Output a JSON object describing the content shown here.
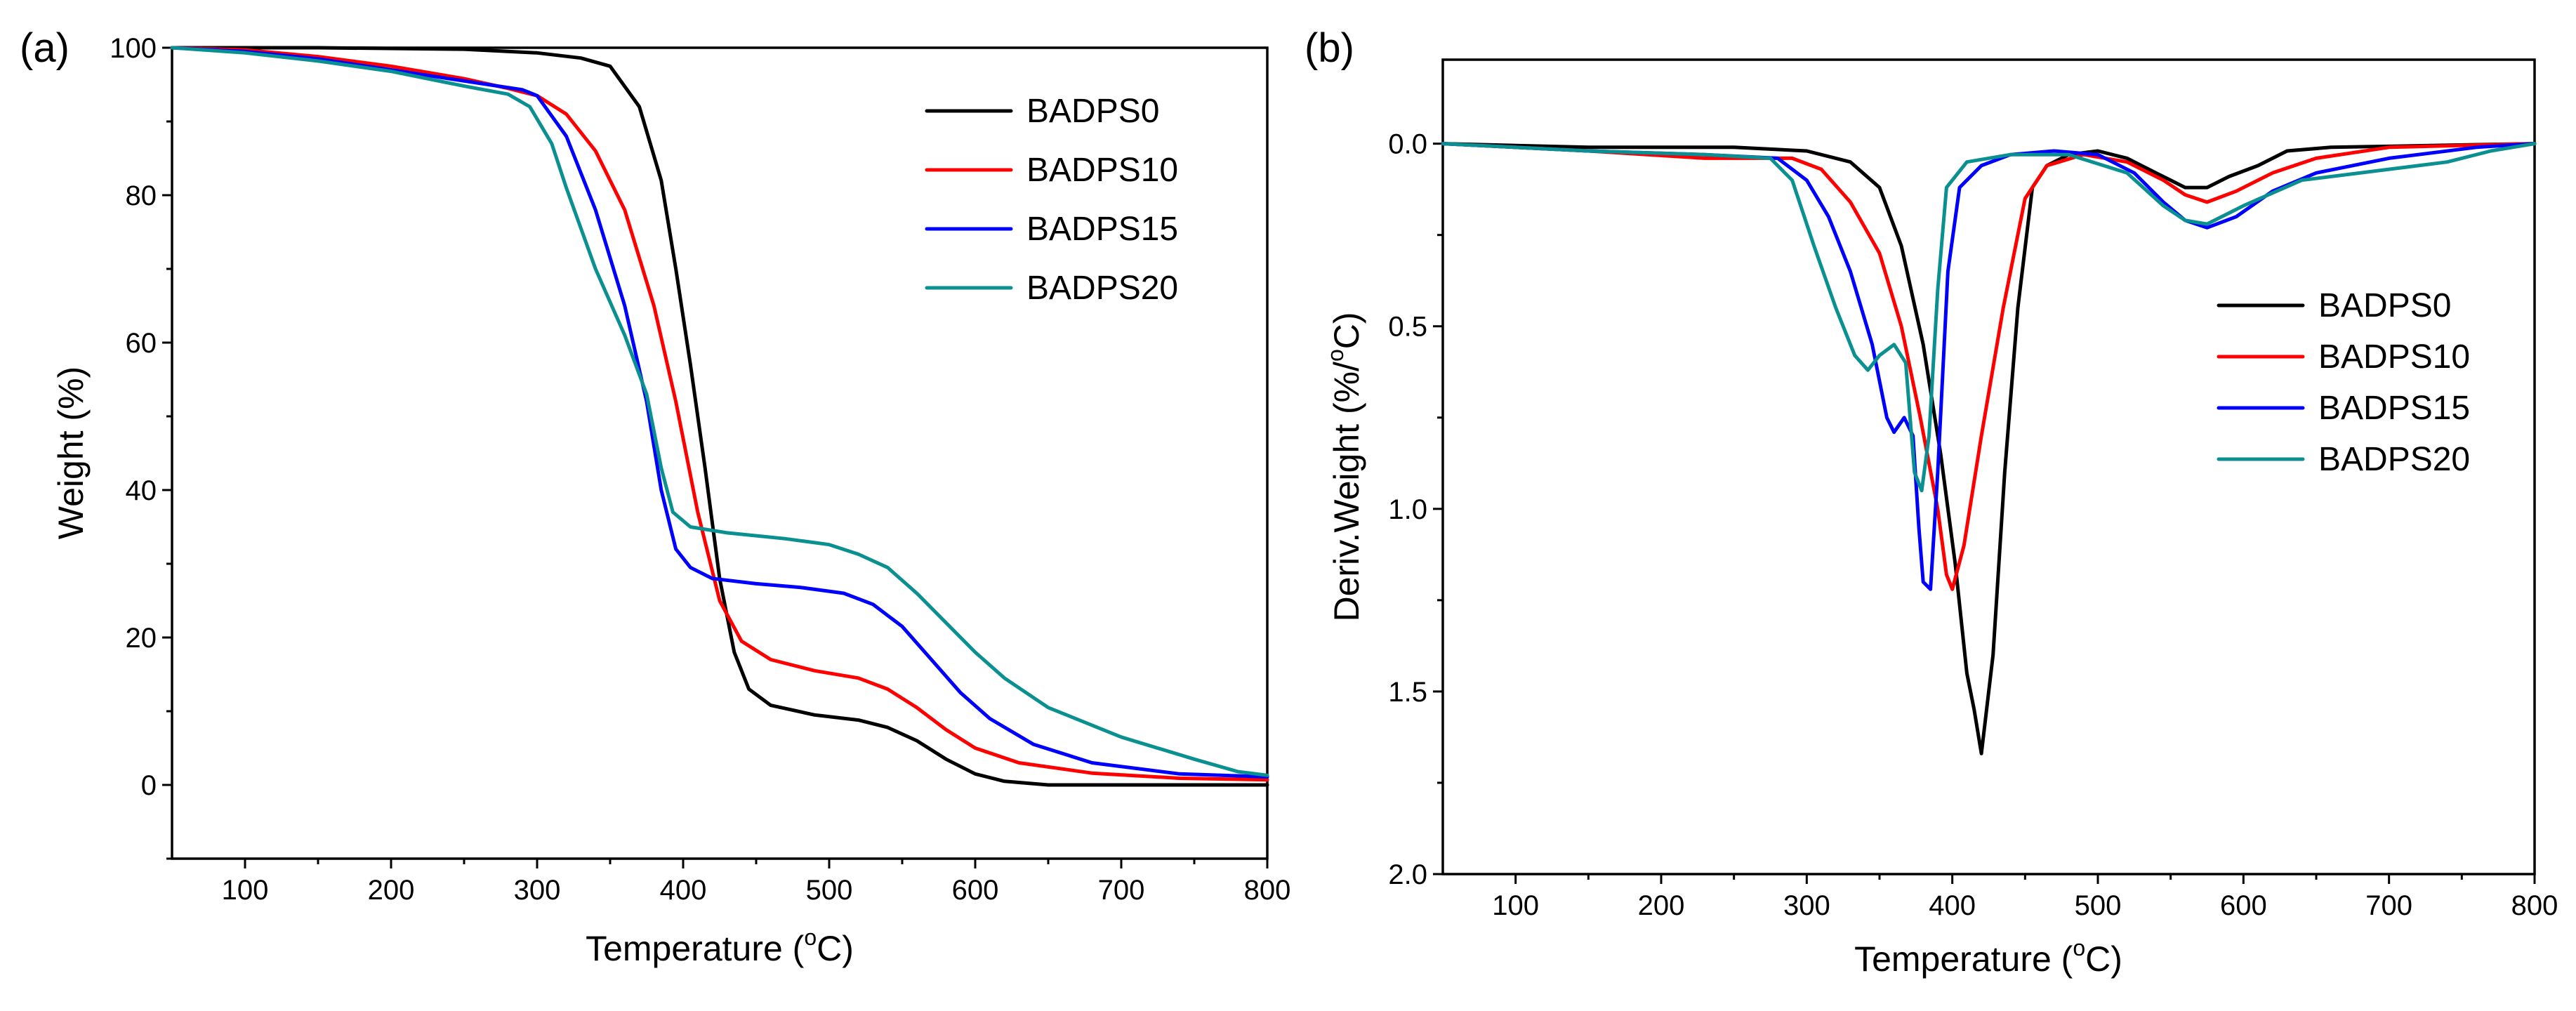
{
  "chart_data": [
    {
      "id": "a",
      "type": "line",
      "panel_label": "(a)",
      "xlabel": "Temperature (",
      "xlabel_sup": "o",
      "xlabel_tail": "C)",
      "ylabel": "Weight (%)",
      "xlim": [
        50,
        800
      ],
      "ylim": [
        -10,
        100
      ],
      "xticks": [
        100,
        200,
        300,
        400,
        500,
        600,
        700,
        800
      ],
      "yticks": [
        0,
        20,
        40,
        60,
        80,
        100
      ],
      "grid": false,
      "legend_position": "top-right",
      "series": [
        {
          "name": "BADPS0",
          "color": "#000000",
          "points": [
            [
              50,
              100
            ],
            [
              150,
              100
            ],
            [
              250,
              99.8
            ],
            [
              300,
              99.3
            ],
            [
              330,
              98.6
            ],
            [
              350,
              97.5
            ],
            [
              370,
              92
            ],
            [
              385,
              82
            ],
            [
              395,
              70
            ],
            [
              405,
              57
            ],
            [
              415,
              43
            ],
            [
              425,
              28
            ],
            [
              435,
              18
            ],
            [
              445,
              13
            ],
            [
              460,
              10.8
            ],
            [
              490,
              9.5
            ],
            [
              520,
              8.8
            ],
            [
              540,
              7.8
            ],
            [
              560,
              6
            ],
            [
              580,
              3.5
            ],
            [
              600,
              1.5
            ],
            [
              620,
              0.5
            ],
            [
              650,
              0
            ],
            [
              800,
              0
            ]
          ]
        },
        {
          "name": "BADPS10",
          "color": "#ff0000",
          "points": [
            [
              50,
              100
            ],
            [
              100,
              99.7
            ],
            [
              150,
              98.8
            ],
            [
              200,
              97.5
            ],
            [
              250,
              95.8
            ],
            [
              280,
              94.5
            ],
            [
              300,
              93.5
            ],
            [
              320,
              91
            ],
            [
              340,
              86
            ],
            [
              360,
              78
            ],
            [
              380,
              65
            ],
            [
              395,
              52
            ],
            [
              410,
              37
            ],
            [
              425,
              25
            ],
            [
              440,
              19.5
            ],
            [
              460,
              17
            ],
            [
              490,
              15.5
            ],
            [
              520,
              14.5
            ],
            [
              540,
              13
            ],
            [
              560,
              10.5
            ],
            [
              580,
              7.5
            ],
            [
              600,
              5
            ],
            [
              630,
              3
            ],
            [
              680,
              1.6
            ],
            [
              740,
              0.9
            ],
            [
              800,
              0.7
            ]
          ]
        },
        {
          "name": "BADPS15",
          "color": "#0000ff",
          "points": [
            [
              50,
              100
            ],
            [
              100,
              99.5
            ],
            [
              150,
              98.5
            ],
            [
              200,
              97
            ],
            [
              250,
              95.5
            ],
            [
              290,
              94.3
            ],
            [
              300,
              93.5
            ],
            [
              320,
              88
            ],
            [
              340,
              78
            ],
            [
              360,
              65
            ],
            [
              375,
              52
            ],
            [
              385,
              40
            ],
            [
              395,
              32
            ],
            [
              405,
              29.5
            ],
            [
              420,
              28
            ],
            [
              450,
              27.3
            ],
            [
              480,
              26.8
            ],
            [
              510,
              26
            ],
            [
              530,
              24.5
            ],
            [
              550,
              21.5
            ],
            [
              570,
              17
            ],
            [
              590,
              12.5
            ],
            [
              610,
              9
            ],
            [
              640,
              5.5
            ],
            [
              680,
              3
            ],
            [
              740,
              1.5
            ],
            [
              800,
              1.1
            ]
          ]
        },
        {
          "name": "BADPS20",
          "color": "#0a9090",
          "points": [
            [
              50,
              100
            ],
            [
              100,
              99.3
            ],
            [
              150,
              98.2
            ],
            [
              200,
              96.8
            ],
            [
              250,
              94.8
            ],
            [
              280,
              93.7
            ],
            [
              295,
              92
            ],
            [
              310,
              87
            ],
            [
              320,
              81
            ],
            [
              340,
              70
            ],
            [
              360,
              61
            ],
            [
              375,
              53
            ],
            [
              385,
              43
            ],
            [
              393,
              37
            ],
            [
              405,
              35
            ],
            [
              430,
              34.2
            ],
            [
              470,
              33.4
            ],
            [
              500,
              32.6
            ],
            [
              520,
              31.3
            ],
            [
              540,
              29.5
            ],
            [
              560,
              26
            ],
            [
              580,
              22
            ],
            [
              600,
              18
            ],
            [
              620,
              14.5
            ],
            [
              650,
              10.5
            ],
            [
              700,
              6.5
            ],
            [
              750,
              3.5
            ],
            [
              780,
              1.8
            ],
            [
              800,
              1.3
            ]
          ]
        }
      ]
    },
    {
      "id": "b",
      "type": "line",
      "panel_label": "(b)",
      "xlabel": "Temperature (",
      "xlabel_sup": "o",
      "xlabel_tail": "C)",
      "ylabel": "Deriv.Weight (%/",
      "ylabel_sup": "o",
      "ylabel_tail": "C)",
      "xlim": [
        50,
        800
      ],
      "ylim": [
        -0.23,
        2.0
      ],
      "y_inverted": true,
      "xticks": [
        100,
        200,
        300,
        400,
        500,
        600,
        700,
        800
      ],
      "yticks": [
        0.0,
        0.5,
        1.0,
        1.5,
        2.0
      ],
      "ytick_labels": [
        "0.0",
        "0.5",
        "1.0",
        "1.5",
        "2.0"
      ],
      "grid": false,
      "legend_position": "right",
      "series": [
        {
          "name": "BADPS0",
          "color": "#000000",
          "points": [
            [
              50,
              0
            ],
            [
              150,
              0.01
            ],
            [
              250,
              0.01
            ],
            [
              300,
              0.02
            ],
            [
              330,
              0.05
            ],
            [
              350,
              0.12
            ],
            [
              365,
              0.28
            ],
            [
              380,
              0.55
            ],
            [
              392,
              0.85
            ],
            [
              402,
              1.15
            ],
            [
              410,
              1.45
            ],
            [
              415,
              1.55
            ],
            [
              420,
              1.67
            ],
            [
              428,
              1.4
            ],
            [
              436,
              0.9
            ],
            [
              445,
              0.45
            ],
            [
              455,
              0.12
            ],
            [
              465,
              0.06
            ],
            [
              480,
              0.03
            ],
            [
              500,
              0.02
            ],
            [
              520,
              0.04
            ],
            [
              540,
              0.08
            ],
            [
              560,
              0.12
            ],
            [
              575,
              0.12
            ],
            [
              590,
              0.09
            ],
            [
              610,
              0.06
            ],
            [
              630,
              0.02
            ],
            [
              660,
              0.01
            ],
            [
              800,
              0
            ]
          ]
        },
        {
          "name": "BADPS10",
          "color": "#ff0000",
          "points": [
            [
              50,
              0
            ],
            [
              150,
              0.02
            ],
            [
              230,
              0.04
            ],
            [
              270,
              0.04
            ],
            [
              290,
              0.04
            ],
            [
              310,
              0.07
            ],
            [
              330,
              0.16
            ],
            [
              350,
              0.3
            ],
            [
              365,
              0.5
            ],
            [
              378,
              0.75
            ],
            [
              390,
              1.0
            ],
            [
              396,
              1.18
            ],
            [
              400,
              1.22
            ],
            [
              408,
              1.1
            ],
            [
              420,
              0.8
            ],
            [
              435,
              0.45
            ],
            [
              450,
              0.15
            ],
            [
              465,
              0.06
            ],
            [
              490,
              0.03
            ],
            [
              520,
              0.05
            ],
            [
              545,
              0.1
            ],
            [
              560,
              0.14
            ],
            [
              575,
              0.16
            ],
            [
              595,
              0.13
            ],
            [
              620,
              0.08
            ],
            [
              650,
              0.04
            ],
            [
              700,
              0.01
            ],
            [
              800,
              0
            ]
          ]
        },
        {
          "name": "BADPS15",
          "color": "#0000ff",
          "points": [
            [
              50,
              0
            ],
            [
              150,
              0.02
            ],
            [
              230,
              0.03
            ],
            [
              280,
              0.04
            ],
            [
              300,
              0.1
            ],
            [
              315,
              0.2
            ],
            [
              330,
              0.35
            ],
            [
              345,
              0.55
            ],
            [
              355,
              0.75
            ],
            [
              360,
              0.79
            ],
            [
              367,
              0.75
            ],
            [
              373,
              0.8
            ],
            [
              377,
              1.05
            ],
            [
              380,
              1.2
            ],
            [
              385,
              1.22
            ],
            [
              390,
              0.9
            ],
            [
              397,
              0.35
            ],
            [
              405,
              0.12
            ],
            [
              420,
              0.06
            ],
            [
              440,
              0.03
            ],
            [
              470,
              0.02
            ],
            [
              500,
              0.03
            ],
            [
              525,
              0.08
            ],
            [
              545,
              0.16
            ],
            [
              560,
              0.21
            ],
            [
              575,
              0.23
            ],
            [
              595,
              0.2
            ],
            [
              620,
              0.13
            ],
            [
              650,
              0.08
            ],
            [
              700,
              0.04
            ],
            [
              760,
              0.01
            ],
            [
              800,
              0
            ]
          ]
        },
        {
          "name": "BADPS20",
          "color": "#0a9090",
          "points": [
            [
              50,
              0
            ],
            [
              150,
              0.02
            ],
            [
              230,
              0.03
            ],
            [
              275,
              0.04
            ],
            [
              290,
              0.1
            ],
            [
              305,
              0.28
            ],
            [
              320,
              0.45
            ],
            [
              333,
              0.58
            ],
            [
              342,
              0.62
            ],
            [
              350,
              0.58
            ],
            [
              360,
              0.55
            ],
            [
              368,
              0.6
            ],
            [
              374,
              0.9
            ],
            [
              379,
              0.95
            ],
            [
              384,
              0.8
            ],
            [
              390,
              0.4
            ],
            [
              396,
              0.12
            ],
            [
              410,
              0.05
            ],
            [
              440,
              0.03
            ],
            [
              480,
              0.03
            ],
            [
              520,
              0.08
            ],
            [
              545,
              0.17
            ],
            [
              560,
              0.21
            ],
            [
              575,
              0.22
            ],
            [
              600,
              0.17
            ],
            [
              640,
              0.1
            ],
            [
              700,
              0.07
            ],
            [
              740,
              0.05
            ],
            [
              770,
              0.02
            ],
            [
              800,
              0
            ]
          ]
        }
      ]
    }
  ]
}
